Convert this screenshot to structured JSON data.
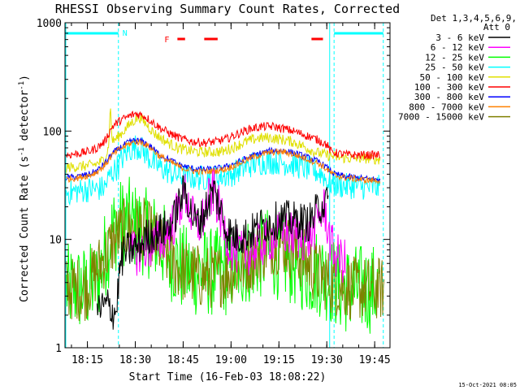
{
  "chart_data": {
    "type": "line",
    "title": "RHESSI Observing Summary Count Rates, Corrected",
    "xlabel": "Start Time (16-Feb-03 18:08:22)",
    "ylabel_main": "Corrected Count Rate (s",
    "ylabel_sup1": "-1",
    "ylabel_mid": " detector",
    "ylabel_sup2": "-1",
    "ylabel_end": ")",
    "yscale": "log",
    "ylim": [
      1,
      1000
    ],
    "xlim": [
      18.133,
      19.83
    ],
    "x_ticks": [
      {
        "v": 18.25,
        "label": "18:15"
      },
      {
        "v": 18.5,
        "label": "18:30"
      },
      {
        "v": 18.75,
        "label": "18:45"
      },
      {
        "v": 19.0,
        "label": "19:00"
      },
      {
        "v": 19.25,
        "label": "19:15"
      },
      {
        "v": 19.5,
        "label": "19:30"
      },
      {
        "v": 19.75,
        "label": "19:45"
      }
    ],
    "y_ticks": [
      {
        "v": 1,
        "label": "1"
      },
      {
        "v": 10,
        "label": "10"
      },
      {
        "v": 100,
        "label": "100"
      },
      {
        "v": 1000,
        "label": "1000"
      }
    ],
    "legend": {
      "header1": "Det 1,3,4,5,6,9,",
      "header2": "Att 0",
      "position": "top-right outside"
    },
    "annotations": {
      "night_label": "N",
      "flare_label": "F",
      "night_intervals": [
        [
          18.133,
          18.412
        ],
        [
          19.538,
          19.795
        ]
      ],
      "flare_intervals": [
        [
          18.72,
          18.76
        ],
        [
          18.86,
          18.93
        ],
        [
          19.42,
          19.48
        ]
      ],
      "night_markers_x": [
        18.137,
        18.412,
        19.515,
        19.538,
        19.795
      ]
    },
    "series": [
      {
        "name": "3 - 6 keV",
        "color": "#000000",
        "x": [
          18.3,
          18.34,
          18.36,
          18.38,
          18.4,
          18.41,
          18.42,
          18.44,
          18.47,
          18.5,
          18.53,
          18.56,
          18.6,
          18.64,
          18.67,
          18.7,
          18.73,
          18.76,
          18.79,
          18.82,
          18.85,
          18.88,
          18.91,
          18.94,
          18.97,
          19.0,
          19.04,
          19.08,
          19.12,
          19.16,
          19.2,
          19.24,
          19.28,
          19.32,
          19.36,
          19.4,
          19.43,
          19.46,
          19.49,
          19.51
        ],
        "y": [
          2.2,
          2.4,
          2.5,
          2.2,
          2.1,
          3.5,
          5.5,
          7.5,
          8.0,
          8.5,
          9.0,
          10.5,
          11.5,
          12.0,
          13.0,
          15.0,
          22.0,
          29.0,
          18.0,
          14.0,
          16.0,
          22.0,
          29.0,
          20.0,
          13.0,
          11.0,
          10.5,
          11.0,
          12.0,
          13.5,
          14.0,
          15.0,
          15.5,
          15.0,
          15.0,
          14.0,
          16.0,
          20.0,
          22.0,
          20.0
        ]
      },
      {
        "name": "6 - 12 keV",
        "color": "#ff00ff",
        "x": [
          18.47,
          18.5,
          18.53,
          18.56,
          18.6,
          18.64,
          18.67,
          18.7,
          18.73,
          18.76,
          18.79,
          18.82,
          18.85,
          18.88,
          18.91,
          18.94,
          18.97,
          19.0,
          19.04,
          19.08,
          19.12,
          19.16,
          19.2,
          19.24,
          19.28,
          19.32,
          19.36,
          19.4,
          19.43,
          19.46,
          19.49,
          19.52,
          19.55,
          19.58,
          19.6
        ],
        "y": [
          7.0,
          7.5,
          8.0,
          8.5,
          9.0,
          10.0,
          12.0,
          14.0,
          20.0,
          27.0,
          17.0,
          13.0,
          15.0,
          22.0,
          28.0,
          18.0,
          11.0,
          8.5,
          7.5,
          7.5,
          8.0,
          9.0,
          10.0,
          11.0,
          11.5,
          11.0,
          10.5,
          10.0,
          12.0,
          17.0,
          19.0,
          9.0,
          7.0,
          6.5,
          6.0
        ]
      },
      {
        "name": "12 - 25 keV",
        "color": "#00ff00",
        "x": [
          18.14,
          18.2,
          18.25,
          18.3,
          18.34,
          18.38,
          18.42,
          18.46,
          18.5,
          18.54,
          18.58,
          18.62,
          18.66,
          18.7,
          18.74,
          18.78,
          18.82,
          18.86,
          18.9,
          18.94,
          18.98,
          19.02,
          19.06,
          19.1,
          19.14,
          19.18,
          19.22,
          19.26,
          19.3,
          19.34,
          19.38,
          19.42,
          19.46,
          19.5,
          19.54,
          19.58,
          19.62,
          19.66,
          19.7,
          19.74,
          19.78
        ],
        "y": [
          3.5,
          3.5,
          3.5,
          4.0,
          7.0,
          12.0,
          14.0,
          15.0,
          13.0,
          12.0,
          11.0,
          10.0,
          8.0,
          6.5,
          5.5,
          5.0,
          5.0,
          5.0,
          5.0,
          5.0,
          5.0,
          5.5,
          6.0,
          6.5,
          7.0,
          7.5,
          7.5,
          7.0,
          6.5,
          6.0,
          5.5,
          5.0,
          5.0,
          4.5,
          4.0,
          3.5,
          3.5,
          3.5,
          3.5,
          3.5,
          3.5
        ]
      },
      {
        "name": "25 - 50 keV",
        "color": "#00ffff",
        "x": [
          18.14,
          18.2,
          18.26,
          18.3,
          18.34,
          18.37,
          18.4,
          18.43,
          18.46,
          18.5,
          18.53,
          18.56,
          18.6,
          18.64,
          18.7,
          18.76,
          18.82,
          18.88,
          18.94,
          19.0,
          19.06,
          19.12,
          19.18,
          19.24,
          19.3,
          19.36,
          19.42,
          19.48,
          19.5,
          19.54,
          19.6,
          19.66,
          19.72,
          19.78
        ],
        "y": [
          27,
          28,
          29,
          29,
          30,
          40,
          45,
          55,
          65,
          72,
          70,
          60,
          50,
          45,
          40,
          38,
          37,
          37,
          38,
          40,
          45,
          50,
          52,
          52,
          50,
          47,
          44,
          40,
          34,
          32,
          31,
          31,
          30,
          30
        ]
      },
      {
        "name": "50 - 100 keV",
        "color": "#e0e000",
        "x": [
          18.14,
          18.2,
          18.26,
          18.3,
          18.34,
          18.36,
          18.37,
          18.38,
          18.4,
          18.44,
          18.48,
          18.52,
          18.56,
          18.6,
          18.66,
          18.72,
          18.78,
          18.84,
          18.9,
          18.96,
          19.02,
          19.08,
          19.14,
          19.2,
          19.26,
          19.32,
          19.38,
          19.44,
          19.5,
          19.56,
          19.62,
          19.7,
          19.78
        ],
        "y": [
          46,
          47,
          48,
          50,
          55,
          70,
          170,
          80,
          85,
          100,
          120,
          135,
          115,
          95,
          80,
          70,
          66,
          64,
          64,
          65,
          72,
          80,
          86,
          87,
          84,
          80,
          72,
          64,
          60,
          57,
          56,
          56,
          55
        ]
      },
      {
        "name": "100 - 300 keV",
        "color": "#ff0000",
        "x": [
          18.14,
          18.2,
          18.26,
          18.3,
          18.34,
          18.38,
          18.42,
          18.46,
          18.5,
          18.54,
          18.58,
          18.62,
          18.68,
          18.74,
          18.8,
          18.86,
          18.92,
          18.98,
          19.04,
          19.1,
          19.16,
          19.22,
          19.28,
          19.34,
          19.4,
          19.46,
          19.5,
          19.52,
          19.56,
          19.62,
          19.7,
          19.78
        ],
        "y": [
          60,
          62,
          65,
          70,
          80,
          110,
          125,
          135,
          145,
          140,
          125,
          110,
          95,
          85,
          80,
          78,
          80,
          85,
          95,
          105,
          110,
          110,
          105,
          98,
          90,
          82,
          75,
          65,
          62,
          60,
          60,
          60
        ]
      },
      {
        "name": "300 - 800 keV",
        "color": "#0000ff",
        "x": [
          18.14,
          18.2,
          18.26,
          18.3,
          18.34,
          18.38,
          18.42,
          18.46,
          18.5,
          18.54,
          18.58,
          18.62,
          18.68,
          18.74,
          18.8,
          18.86,
          18.92,
          18.98,
          19.04,
          19.1,
          19.16,
          19.22,
          19.28,
          19.34,
          19.4,
          19.46,
          19.5,
          19.54,
          19.6,
          19.66,
          19.72,
          19.78
        ],
        "y": [
          37,
          38,
          40,
          43,
          50,
          62,
          70,
          78,
          82,
          80,
          72,
          62,
          54,
          48,
          45,
          44,
          45,
          47,
          52,
          58,
          63,
          66,
          66,
          62,
          57,
          52,
          46,
          40,
          38,
          37,
          36,
          36
        ]
      },
      {
        "name": "800 - 7000 keV",
        "color": "#ff8000",
        "x": [
          18.14,
          18.2,
          18.26,
          18.3,
          18.34,
          18.38,
          18.42,
          18.46,
          18.5,
          18.54,
          18.58,
          18.62,
          18.68,
          18.74,
          18.8,
          18.86,
          18.92,
          18.98,
          19.04,
          19.1,
          19.16,
          19.22,
          19.28,
          19.34,
          19.4,
          19.46,
          19.5,
          19.54,
          19.6,
          19.66,
          19.72,
          19.78
        ],
        "y": [
          36,
          37,
          39,
          42,
          48,
          60,
          68,
          75,
          80,
          78,
          70,
          60,
          52,
          46,
          43,
          42,
          43,
          45,
          50,
          56,
          61,
          64,
          64,
          60,
          55,
          50,
          44,
          39,
          37,
          36,
          35,
          35
        ]
      },
      {
        "name": "7000 - 15000 keV",
        "color": "#808000",
        "x": [
          18.14,
          18.2,
          18.24,
          18.28,
          18.32,
          18.36,
          18.4,
          18.44,
          18.48,
          18.52,
          18.56,
          18.6,
          18.64,
          18.68,
          18.72,
          18.76,
          18.8,
          18.84,
          18.88,
          18.92,
          18.96,
          19.0,
          19.04,
          19.08,
          19.12,
          19.16,
          19.2,
          19.24,
          19.28,
          19.32,
          19.36,
          19.4,
          19.44,
          19.48,
          19.52,
          19.56,
          19.6,
          19.64,
          19.68,
          19.72,
          19.76,
          19.8
        ],
        "y": [
          3.5,
          3.5,
          3.5,
          4.5,
          6.0,
          8.0,
          10.5,
          12.0,
          13.0,
          13.0,
          12.0,
          10.0,
          8.0,
          6.5,
          5.5,
          5.0,
          4.8,
          4.5,
          4.5,
          4.5,
          4.8,
          5.0,
          5.5,
          6.0,
          7.0,
          8.0,
          9.0,
          9.5,
          9.0,
          8.0,
          7.0,
          6.0,
          5.0,
          4.5,
          4.0,
          3.8,
          3.6,
          3.5,
          3.5,
          3.5,
          3.5,
          3.5
        ]
      }
    ]
  },
  "footer": {
    "timestamp": "15-Oct-2021 08:05"
  },
  "colors": {
    "night": "#00ffff",
    "flare": "#ff0000",
    "axis": "#000000",
    "background": "#ffffff"
  }
}
